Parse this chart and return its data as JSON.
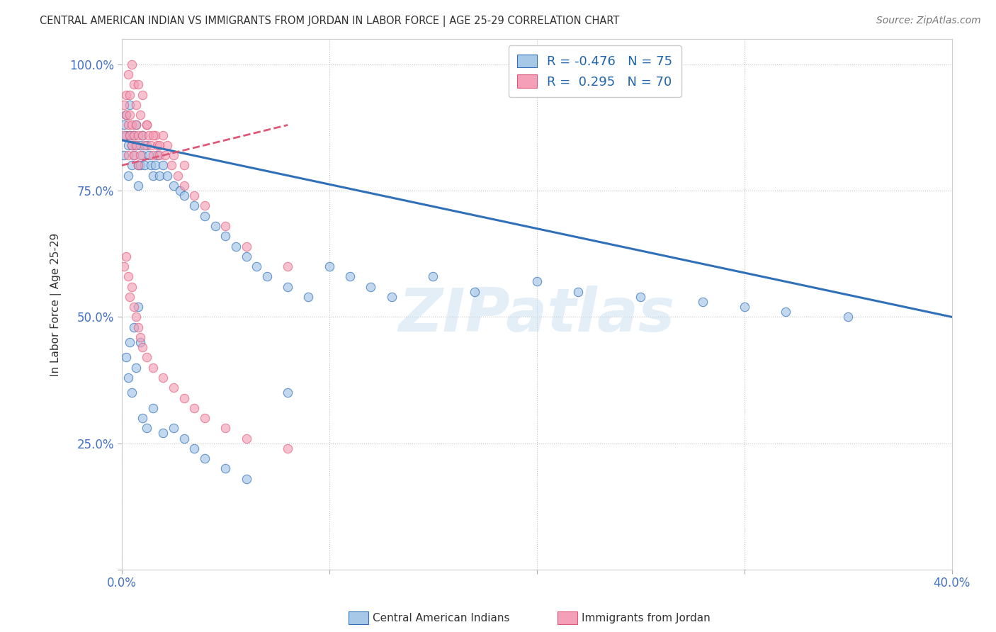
{
  "title": "CENTRAL AMERICAN INDIAN VS IMMIGRANTS FROM JORDAN IN LABOR FORCE | AGE 25-29 CORRELATION CHART",
  "source": "Source: ZipAtlas.com",
  "ylabel": "In Labor Force | Age 25-29",
  "watermark": "ZIPatlas",
  "legend_blue_r": "-0.476",
  "legend_blue_n": "75",
  "legend_pink_r": "0.295",
  "legend_pink_n": "70",
  "xlim": [
    0.0,
    0.4
  ],
  "ylim": [
    0.0,
    1.05
  ],
  "blue_color": "#a8c8e8",
  "pink_color": "#f4a0b8",
  "blue_line_color": "#3070b8",
  "pink_line_color": "#e05878",
  "background_color": "#ffffff",
  "grid_color": "#bbbbbb",
  "title_color": "#333333",
  "blue_scatter_x": [
    0.001,
    0.001,
    0.002,
    0.002,
    0.003,
    0.003,
    0.004,
    0.004,
    0.005,
    0.005,
    0.006,
    0.006,
    0.007,
    0.007,
    0.008,
    0.008,
    0.009,
    0.009,
    0.01,
    0.01,
    0.011,
    0.012,
    0.013,
    0.014,
    0.015,
    0.016,
    0.017,
    0.018,
    0.02,
    0.022,
    0.025,
    0.028,
    0.03,
    0.035,
    0.04,
    0.045,
    0.05,
    0.055,
    0.06,
    0.065,
    0.07,
    0.08,
    0.09,
    0.1,
    0.11,
    0.12,
    0.13,
    0.15,
    0.17,
    0.2,
    0.22,
    0.25,
    0.28,
    0.3,
    0.32,
    0.35,
    0.002,
    0.003,
    0.004,
    0.005,
    0.006,
    0.007,
    0.008,
    0.009,
    0.01,
    0.012,
    0.015,
    0.02,
    0.025,
    0.03,
    0.035,
    0.04,
    0.05,
    0.06,
    0.08
  ],
  "blue_scatter_y": [
    0.88,
    0.82,
    0.86,
    0.9,
    0.84,
    0.78,
    0.86,
    0.92,
    0.84,
    0.8,
    0.86,
    0.82,
    0.88,
    0.84,
    0.8,
    0.76,
    0.84,
    0.8,
    0.86,
    0.82,
    0.8,
    0.84,
    0.82,
    0.8,
    0.78,
    0.8,
    0.82,
    0.78,
    0.8,
    0.78,
    0.76,
    0.75,
    0.74,
    0.72,
    0.7,
    0.68,
    0.66,
    0.64,
    0.62,
    0.6,
    0.58,
    0.56,
    0.54,
    0.6,
    0.58,
    0.56,
    0.54,
    0.58,
    0.55,
    0.57,
    0.55,
    0.54,
    0.53,
    0.52,
    0.51,
    0.5,
    0.42,
    0.38,
    0.45,
    0.35,
    0.48,
    0.4,
    0.52,
    0.45,
    0.3,
    0.28,
    0.32,
    0.27,
    0.28,
    0.26,
    0.24,
    0.22,
    0.2,
    0.18,
    0.35
  ],
  "pink_scatter_x": [
    0.001,
    0.001,
    0.002,
    0.002,
    0.003,
    0.003,
    0.004,
    0.004,
    0.005,
    0.005,
    0.006,
    0.006,
    0.007,
    0.007,
    0.008,
    0.008,
    0.009,
    0.01,
    0.011,
    0.012,
    0.013,
    0.014,
    0.015,
    0.016,
    0.017,
    0.018,
    0.02,
    0.022,
    0.025,
    0.03,
    0.003,
    0.004,
    0.005,
    0.006,
    0.007,
    0.008,
    0.009,
    0.01,
    0.012,
    0.015,
    0.018,
    0.021,
    0.024,
    0.027,
    0.03,
    0.035,
    0.04,
    0.05,
    0.06,
    0.08,
    0.001,
    0.002,
    0.003,
    0.004,
    0.005,
    0.006,
    0.007,
    0.008,
    0.009,
    0.01,
    0.012,
    0.015,
    0.02,
    0.025,
    0.03,
    0.035,
    0.04,
    0.05,
    0.06,
    0.08
  ],
  "pink_scatter_y": [
    0.92,
    0.86,
    0.9,
    0.94,
    0.88,
    0.82,
    0.9,
    0.86,
    0.84,
    0.88,
    0.86,
    0.82,
    0.88,
    0.84,
    0.8,
    0.86,
    0.82,
    0.86,
    0.84,
    0.88,
    0.86,
    0.84,
    0.82,
    0.86,
    0.84,
    0.82,
    0.86,
    0.84,
    0.82,
    0.8,
    0.98,
    0.94,
    1.0,
    0.96,
    0.92,
    0.96,
    0.9,
    0.94,
    0.88,
    0.86,
    0.84,
    0.82,
    0.8,
    0.78,
    0.76,
    0.74,
    0.72,
    0.68,
    0.64,
    0.6,
    0.6,
    0.62,
    0.58,
    0.54,
    0.56,
    0.52,
    0.5,
    0.48,
    0.46,
    0.44,
    0.42,
    0.4,
    0.38,
    0.36,
    0.34,
    0.32,
    0.3,
    0.28,
    0.26,
    0.24
  ],
  "blue_trend_x0": 0.0,
  "blue_trend_y0": 0.85,
  "blue_trend_x1": 0.4,
  "blue_trend_y1": 0.5,
  "pink_trend_x0": 0.0,
  "pink_trend_y0": 0.8,
  "pink_trend_x1": 0.08,
  "pink_trend_y1": 0.88
}
